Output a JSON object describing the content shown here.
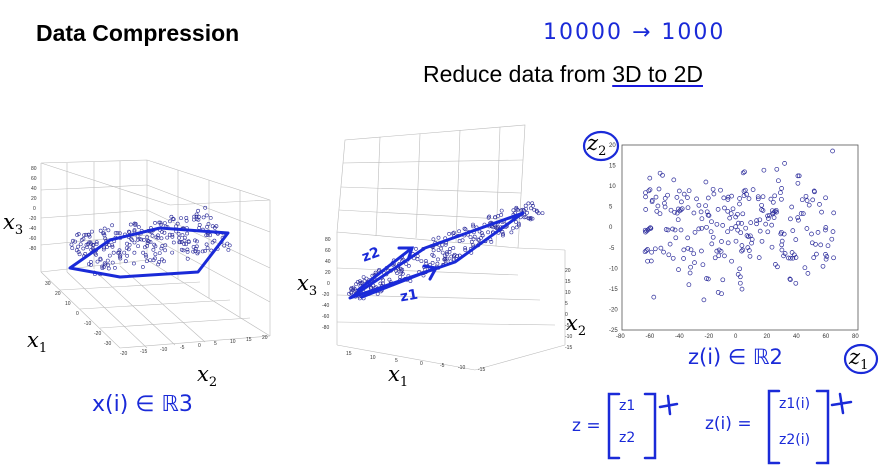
{
  "slide": {
    "title": "Data Compression",
    "subtitle_prefix": "Reduce data from ",
    "subtitle_underlined": "3D to 2D",
    "handwritten_top": "10000 → 1000"
  },
  "plot3d_left": {
    "axis_labels": [
      "x1",
      "x2",
      "x3"
    ],
    "annotation": "x(i) ∈ ℝ3"
  },
  "plot3d_middle": {
    "axis_labels": [
      "x1",
      "x2",
      "x3"
    ],
    "arrow_labels": [
      "z2",
      "z1"
    ]
  },
  "plot2d": {
    "y_label": "z2",
    "x_label": "z1",
    "annotation": "z(i) ∈ ℝ2",
    "y_ticks": [
      "20",
      "15",
      "10",
      "5",
      "0",
      "-5",
      "-10",
      "-15",
      "-20",
      "-25"
    ],
    "x_ticks": [
      "-80",
      "-60",
      "-40",
      "-20",
      "0",
      "20",
      "40",
      "60",
      "80"
    ]
  },
  "vectors": {
    "z_left": "z =",
    "z_left_entries": [
      "z1",
      "z2"
    ],
    "z_right": "z(i) =",
    "z_right_entries": [
      "z1(i)",
      "z2(i)"
    ]
  },
  "colors": {
    "ink": "#1a2ad8",
    "points": "#2a2a9a"
  }
}
